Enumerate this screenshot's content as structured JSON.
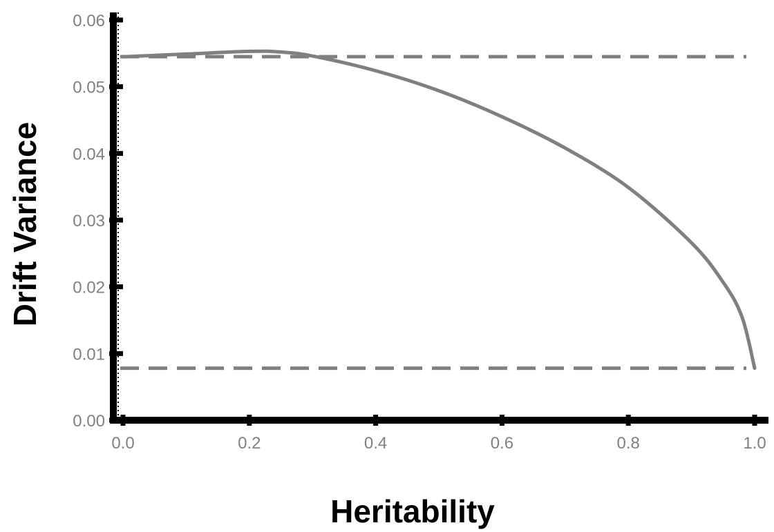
{
  "chart_data": {
    "type": "line",
    "title": "",
    "xlabel": "Heritability",
    "ylabel": "Drift Variance",
    "xlim": [
      0.0,
      1.0
    ],
    "ylim": [
      0.0,
      0.06
    ],
    "x_ticks": [
      "0.0",
      "0.2",
      "0.4",
      "0.6",
      "0.8",
      "1.0"
    ],
    "y_ticks": [
      "0.00",
      "0.01",
      "0.02",
      "0.03",
      "0.04",
      "0.05",
      "0.06"
    ],
    "grid": false,
    "legend": "none",
    "series": [
      {
        "style": "solid",
        "color": "#808080",
        "x": [
          0.0,
          0.1,
          0.2,
          0.25,
          0.3,
          0.4,
          0.5,
          0.6,
          0.7,
          0.8,
          0.9,
          0.95,
          0.98,
          1.0
        ],
        "y": [
          0.0545,
          0.0549,
          0.0553,
          0.0552,
          0.0546,
          0.0524,
          0.0494,
          0.0455,
          0.0408,
          0.0349,
          0.0266,
          0.0207,
          0.0155,
          0.0078
        ]
      }
    ],
    "hlines": [
      {
        "y": 0.0545,
        "style": "dashed",
        "color": "#808080"
      },
      {
        "y": 0.0078,
        "style": "dashed",
        "color": "#808080"
      }
    ]
  }
}
